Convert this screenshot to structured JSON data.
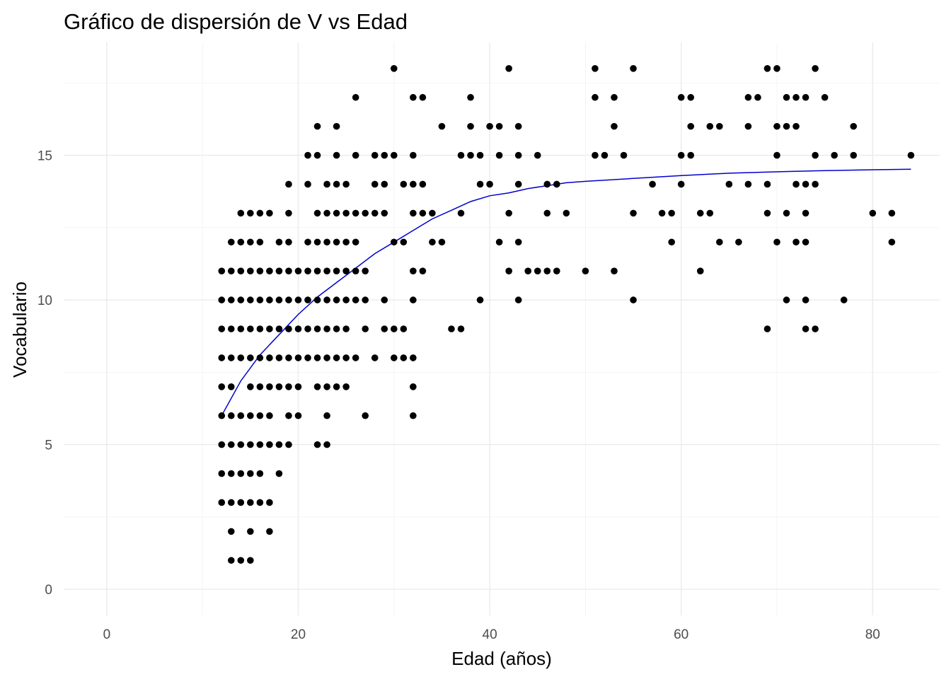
{
  "chart_data": {
    "type": "scatter",
    "title": "Gráfico de dispersión de V vs Edad",
    "xlabel": "Edad (años)",
    "ylabel": "Vocabulario",
    "xlim": [
      -4.5,
      87
    ],
    "ylim": [
      -0.9,
      18.9
    ],
    "x_ticks": [
      0,
      20,
      40,
      60,
      80
    ],
    "y_ticks": [
      0,
      5,
      10,
      15
    ],
    "x_tick_labels": [
      "0",
      "20",
      "40",
      "60",
      "80"
    ],
    "y_tick_labels": [
      "0",
      "5",
      "10",
      "15"
    ],
    "grid": true,
    "legend": "none",
    "colors": {
      "points": "#000000",
      "fit_line": "#0000cc"
    },
    "points": [
      [
        30,
        18
      ],
      [
        42,
        18
      ],
      [
        51,
        18
      ],
      [
        55,
        18
      ],
      [
        69,
        18
      ],
      [
        70,
        18
      ],
      [
        74,
        18
      ],
      [
        26,
        17
      ],
      [
        32,
        17
      ],
      [
        33,
        17
      ],
      [
        38,
        17
      ],
      [
        51,
        17
      ],
      [
        53,
        17
      ],
      [
        60,
        17
      ],
      [
        61,
        17
      ],
      [
        67,
        17
      ],
      [
        68,
        17
      ],
      [
        71,
        17
      ],
      [
        72,
        17
      ],
      [
        73,
        17
      ],
      [
        75,
        17
      ],
      [
        22,
        16
      ],
      [
        24,
        16
      ],
      [
        35,
        16
      ],
      [
        38,
        16
      ],
      [
        40,
        16
      ],
      [
        41,
        16
      ],
      [
        43,
        16
      ],
      [
        53,
        16
      ],
      [
        61,
        16
      ],
      [
        63,
        16
      ],
      [
        64,
        16
      ],
      [
        67,
        16
      ],
      [
        70,
        16
      ],
      [
        71,
        16
      ],
      [
        72,
        16
      ],
      [
        78,
        16
      ],
      [
        21,
        15
      ],
      [
        22,
        15
      ],
      [
        24,
        15
      ],
      [
        26,
        15
      ],
      [
        28,
        15
      ],
      [
        29,
        15
      ],
      [
        30,
        15
      ],
      [
        32,
        15
      ],
      [
        37,
        15
      ],
      [
        38,
        15
      ],
      [
        39,
        15
      ],
      [
        41,
        15
      ],
      [
        43,
        15
      ],
      [
        45,
        15
      ],
      [
        51,
        15
      ],
      [
        52,
        15
      ],
      [
        54,
        15
      ],
      [
        60,
        15
      ],
      [
        61,
        15
      ],
      [
        70,
        15
      ],
      [
        74,
        15
      ],
      [
        76,
        15
      ],
      [
        78,
        15
      ],
      [
        84,
        15
      ],
      [
        19,
        14
      ],
      [
        21,
        14
      ],
      [
        23,
        14
      ],
      [
        24,
        14
      ],
      [
        25,
        14
      ],
      [
        28,
        14
      ],
      [
        29,
        14
      ],
      [
        31,
        14
      ],
      [
        32,
        14
      ],
      [
        33,
        14
      ],
      [
        39,
        14
      ],
      [
        40,
        14
      ],
      [
        43,
        14
      ],
      [
        46,
        14
      ],
      [
        47,
        14
      ],
      [
        57,
        14
      ],
      [
        60,
        14
      ],
      [
        65,
        14
      ],
      [
        67,
        14
      ],
      [
        69,
        14
      ],
      [
        72,
        14
      ],
      [
        73,
        14
      ],
      [
        74,
        14
      ],
      [
        14,
        13
      ],
      [
        15,
        13
      ],
      [
        16,
        13
      ],
      [
        17,
        13
      ],
      [
        19,
        13
      ],
      [
        22,
        13
      ],
      [
        23,
        13
      ],
      [
        24,
        13
      ],
      [
        25,
        13
      ],
      [
        26,
        13
      ],
      [
        27,
        13
      ],
      [
        28,
        13
      ],
      [
        29,
        13
      ],
      [
        32,
        13
      ],
      [
        33,
        13
      ],
      [
        34,
        13
      ],
      [
        37,
        13
      ],
      [
        42,
        13
      ],
      [
        46,
        13
      ],
      [
        48,
        13
      ],
      [
        55,
        13
      ],
      [
        58,
        13
      ],
      [
        59,
        13
      ],
      [
        62,
        13
      ],
      [
        63,
        13
      ],
      [
        69,
        13
      ],
      [
        71,
        13
      ],
      [
        73,
        13
      ],
      [
        80,
        13
      ],
      [
        82,
        13
      ],
      [
        13,
        12
      ],
      [
        14,
        12
      ],
      [
        15,
        12
      ],
      [
        16,
        12
      ],
      [
        18,
        12
      ],
      [
        19,
        12
      ],
      [
        21,
        12
      ],
      [
        22,
        12
      ],
      [
        23,
        12
      ],
      [
        24,
        12
      ],
      [
        25,
        12
      ],
      [
        26,
        12
      ],
      [
        30,
        12
      ],
      [
        31,
        12
      ],
      [
        34,
        12
      ],
      [
        35,
        12
      ],
      [
        41,
        12
      ],
      [
        43,
        12
      ],
      [
        59,
        12
      ],
      [
        64,
        12
      ],
      [
        66,
        12
      ],
      [
        70,
        12
      ],
      [
        72,
        12
      ],
      [
        73,
        12
      ],
      [
        82,
        12
      ],
      [
        12,
        11
      ],
      [
        13,
        11
      ],
      [
        14,
        11
      ],
      [
        15,
        11
      ],
      [
        16,
        11
      ],
      [
        17,
        11
      ],
      [
        18,
        11
      ],
      [
        19,
        11
      ],
      [
        20,
        11
      ],
      [
        21,
        11
      ],
      [
        22,
        11
      ],
      [
        23,
        11
      ],
      [
        24,
        11
      ],
      [
        25,
        11
      ],
      [
        26,
        11
      ],
      [
        27,
        11
      ],
      [
        32,
        11
      ],
      [
        33,
        11
      ],
      [
        42,
        11
      ],
      [
        44,
        11
      ],
      [
        45,
        11
      ],
      [
        46,
        11
      ],
      [
        47,
        11
      ],
      [
        50,
        11
      ],
      [
        53,
        11
      ],
      [
        62,
        11
      ],
      [
        12,
        10
      ],
      [
        13,
        10
      ],
      [
        14,
        10
      ],
      [
        15,
        10
      ],
      [
        16,
        10
      ],
      [
        17,
        10
      ],
      [
        18,
        10
      ],
      [
        19,
        10
      ],
      [
        20,
        10
      ],
      [
        21,
        10
      ],
      [
        22,
        10
      ],
      [
        23,
        10
      ],
      [
        24,
        10
      ],
      [
        25,
        10
      ],
      [
        26,
        10
      ],
      [
        27,
        10
      ],
      [
        29,
        10
      ],
      [
        32,
        10
      ],
      [
        39,
        10
      ],
      [
        43,
        10
      ],
      [
        55,
        10
      ],
      [
        71,
        10
      ],
      [
        73,
        10
      ],
      [
        77,
        10
      ],
      [
        12,
        9
      ],
      [
        13,
        9
      ],
      [
        14,
        9
      ],
      [
        15,
        9
      ],
      [
        16,
        9
      ],
      [
        17,
        9
      ],
      [
        18,
        9
      ],
      [
        19,
        9
      ],
      [
        20,
        9
      ],
      [
        21,
        9
      ],
      [
        22,
        9
      ],
      [
        23,
        9
      ],
      [
        24,
        9
      ],
      [
        25,
        9
      ],
      [
        27,
        9
      ],
      [
        29,
        9
      ],
      [
        30,
        9
      ],
      [
        31,
        9
      ],
      [
        36,
        9
      ],
      [
        37,
        9
      ],
      [
        69,
        9
      ],
      [
        73,
        9
      ],
      [
        74,
        9
      ],
      [
        12,
        8
      ],
      [
        13,
        8
      ],
      [
        14,
        8
      ],
      [
        15,
        8
      ],
      [
        16,
        8
      ],
      [
        17,
        8
      ],
      [
        18,
        8
      ],
      [
        19,
        8
      ],
      [
        20,
        8
      ],
      [
        21,
        8
      ],
      [
        22,
        8
      ],
      [
        23,
        8
      ],
      [
        24,
        8
      ],
      [
        25,
        8
      ],
      [
        26,
        8
      ],
      [
        28,
        8
      ],
      [
        30,
        8
      ],
      [
        31,
        8
      ],
      [
        32,
        8
      ],
      [
        12,
        7
      ],
      [
        13,
        7
      ],
      [
        15,
        7
      ],
      [
        16,
        7
      ],
      [
        17,
        7
      ],
      [
        18,
        7
      ],
      [
        19,
        7
      ],
      [
        20,
        7
      ],
      [
        22,
        7
      ],
      [
        23,
        7
      ],
      [
        24,
        7
      ],
      [
        25,
        7
      ],
      [
        32,
        7
      ],
      [
        12,
        6
      ],
      [
        13,
        6
      ],
      [
        14,
        6
      ],
      [
        15,
        6
      ],
      [
        16,
        6
      ],
      [
        17,
        6
      ],
      [
        19,
        6
      ],
      [
        20,
        6
      ],
      [
        23,
        6
      ],
      [
        27,
        6
      ],
      [
        32,
        6
      ],
      [
        12,
        5
      ],
      [
        13,
        5
      ],
      [
        14,
        5
      ],
      [
        15,
        5
      ],
      [
        16,
        5
      ],
      [
        17,
        5
      ],
      [
        18,
        5
      ],
      [
        19,
        5
      ],
      [
        22,
        5
      ],
      [
        23,
        5
      ],
      [
        12,
        4
      ],
      [
        13,
        4
      ],
      [
        14,
        4
      ],
      [
        15,
        4
      ],
      [
        16,
        4
      ],
      [
        18,
        4
      ],
      [
        12,
        3
      ],
      [
        13,
        3
      ],
      [
        14,
        3
      ],
      [
        15,
        3
      ],
      [
        16,
        3
      ],
      [
        17,
        3
      ],
      [
        13,
        2
      ],
      [
        15,
        2
      ],
      [
        17,
        2
      ],
      [
        13,
        1
      ],
      [
        14,
        1
      ],
      [
        15,
        1
      ]
    ],
    "fit_curve": [
      [
        12,
        6.0
      ],
      [
        14,
        7.2
      ],
      [
        16,
        8.1
      ],
      [
        18,
        8.8
      ],
      [
        20,
        9.5
      ],
      [
        22,
        10.1
      ],
      [
        24,
        10.6
      ],
      [
        26,
        11.1
      ],
      [
        28,
        11.6
      ],
      [
        30,
        12.0
      ],
      [
        32,
        12.4
      ],
      [
        34,
        12.8
      ],
      [
        36,
        13.1
      ],
      [
        38,
        13.4
      ],
      [
        40,
        13.6
      ],
      [
        42,
        13.7
      ],
      [
        44,
        13.85
      ],
      [
        46,
        13.95
      ],
      [
        48,
        14.05
      ],
      [
        50,
        14.1
      ],
      [
        55,
        14.2
      ],
      [
        60,
        14.3
      ],
      [
        65,
        14.38
      ],
      [
        70,
        14.43
      ],
      [
        75,
        14.47
      ],
      [
        80,
        14.5
      ],
      [
        84,
        14.52
      ]
    ]
  }
}
